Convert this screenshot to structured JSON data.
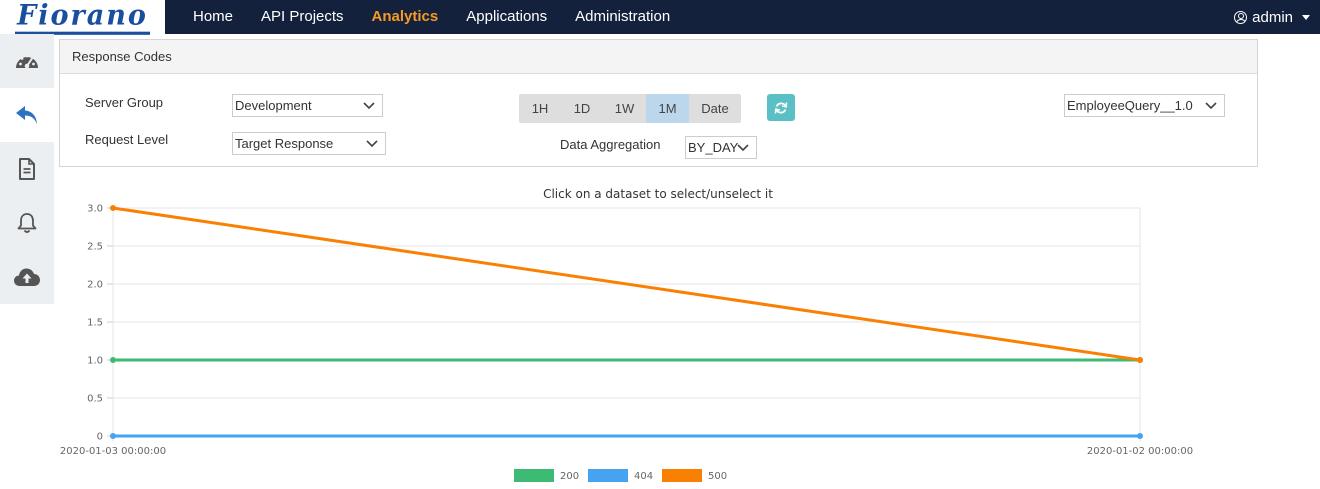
{
  "brand": {
    "logo_text": "Fiorano"
  },
  "nav": {
    "items": [
      {
        "label": "Home",
        "active": false
      },
      {
        "label": "API Projects",
        "active": false
      },
      {
        "label": "Analytics",
        "active": true
      },
      {
        "label": "Applications",
        "active": false
      },
      {
        "label": "Administration",
        "active": false
      }
    ],
    "user": "admin",
    "active_color": "#f59a23",
    "bg_color": "#14213d"
  },
  "sidebar": {
    "items": [
      {
        "icon": "dashboard-icon",
        "active": false
      },
      {
        "icon": "reply-arrow-icon",
        "active": true
      },
      {
        "icon": "document-icon",
        "active": false
      },
      {
        "icon": "bell-icon",
        "active": false
      },
      {
        "icon": "cloud-upload-icon",
        "active": false
      }
    ]
  },
  "panel": {
    "title": "Response Codes",
    "server_group_label": "Server Group",
    "server_group_value": "Development",
    "request_level_label": "Request Level",
    "request_level_value": "Target Response",
    "time_buttons": [
      "1H",
      "1D",
      "1W",
      "1M",
      "Date"
    ],
    "active_time_button": "1M",
    "aggregation_label": "Data Aggregation",
    "aggregation_value": "BY_DAY",
    "api_value": "EmployeeQuery__1.0",
    "refresh_color": "#5bc0c6"
  },
  "chart_data": {
    "type": "line",
    "title": "Click on a dataset to select/unselect it",
    "x": [
      "2020-01-03 00:00:00",
      "2020-01-02 00:00:00"
    ],
    "ylim": [
      0,
      3.0
    ],
    "yticks": [
      "0",
      "0.5",
      "1.0",
      "1.5",
      "2.0",
      "2.5",
      "3.0"
    ],
    "grid": true,
    "legend_position": "bottom",
    "series": [
      {
        "name": "200",
        "color": "#3dba74",
        "values": [
          1,
          1
        ]
      },
      {
        "name": "404",
        "color": "#45a3f0",
        "values": [
          0,
          0
        ]
      },
      {
        "name": "500",
        "color": "#fa8004",
        "values": [
          3,
          1
        ]
      }
    ]
  }
}
